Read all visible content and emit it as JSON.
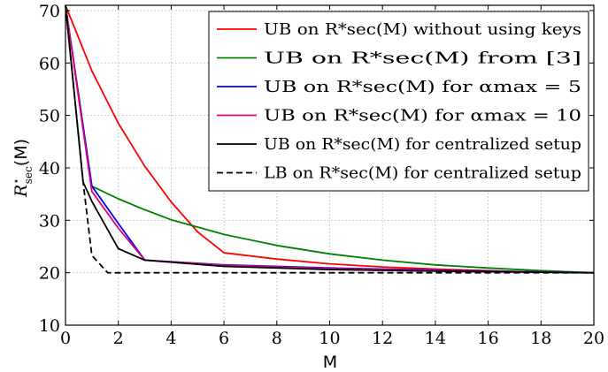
{
  "chart_data": {
    "type": "line",
    "title": "",
    "xlabel": "M",
    "ylabel": "R*sec(M)",
    "xlim": [
      0,
      20
    ],
    "ylim": [
      10,
      71
    ],
    "xticks": [
      0,
      2,
      4,
      6,
      8,
      10,
      12,
      14,
      16,
      18,
      20
    ],
    "yticks": [
      10,
      20,
      30,
      40,
      50,
      60,
      70
    ],
    "grid": true,
    "legend_position": "top-right",
    "series": [
      {
        "name": "UB on R*sec(M) without using keys",
        "color": "#ff0000",
        "dash": "solid",
        "x": [
          0,
          1,
          2,
          3,
          4,
          5,
          6,
          8,
          10,
          12,
          14,
          16,
          18,
          20
        ],
        "y": [
          71,
          58.5,
          48.5,
          40.3,
          33.5,
          27.8,
          23.8,
          22.6,
          21.7,
          21.1,
          20.7,
          20.4,
          20.1,
          20
        ]
      },
      {
        "name": "UB on R*sec(M) from [3]",
        "color": "#008000",
        "dash": "solid",
        "x": [
          0,
          1,
          2,
          3,
          4,
          6,
          8,
          10,
          12,
          14,
          16,
          18,
          20
        ],
        "y": [
          71,
          36.5,
          34.1,
          32.0,
          30.1,
          27.3,
          25.2,
          23.6,
          22.4,
          21.5,
          20.9,
          20.4,
          20
        ]
      },
      {
        "name": "UB on R*sec(M) for αmax = 5",
        "color": "#0000ff",
        "dash": "solid",
        "x": [
          0,
          1,
          2,
          3,
          6,
          10,
          14,
          20
        ],
        "y": [
          71,
          36.5,
          29.4,
          22.4,
          21.5,
          20.9,
          20.5,
          20
        ]
      },
      {
        "name": "UB on R*sec(M) for αmax = 10",
        "color": "#e0007a",
        "dash": "solid",
        "x": [
          0,
          1,
          2,
          3,
          6,
          10,
          14,
          20
        ],
        "y": [
          71,
          35.5,
          28.5,
          22.4,
          21.4,
          20.8,
          20.4,
          20
        ]
      },
      {
        "name": "UB on R*sec(M) for centralized setup",
        "color": "#000000",
        "dash": "solid",
        "x": [
          0,
          0.667,
          1,
          2,
          3,
          6,
          10,
          14,
          20
        ],
        "y": [
          71,
          37.3,
          33.6,
          24.6,
          22.4,
          21.2,
          20.6,
          20.3,
          20
        ]
      },
      {
        "name": "LB on R*sec(M) for centralized setup",
        "color": "#000000",
        "dash": "dashed",
        "x": [
          0,
          0.667,
          1,
          1.6,
          3,
          6,
          10,
          14,
          20
        ],
        "y": [
          71,
          37.3,
          23.3,
          20,
          20,
          20,
          20,
          20,
          20
        ]
      }
    ]
  }
}
